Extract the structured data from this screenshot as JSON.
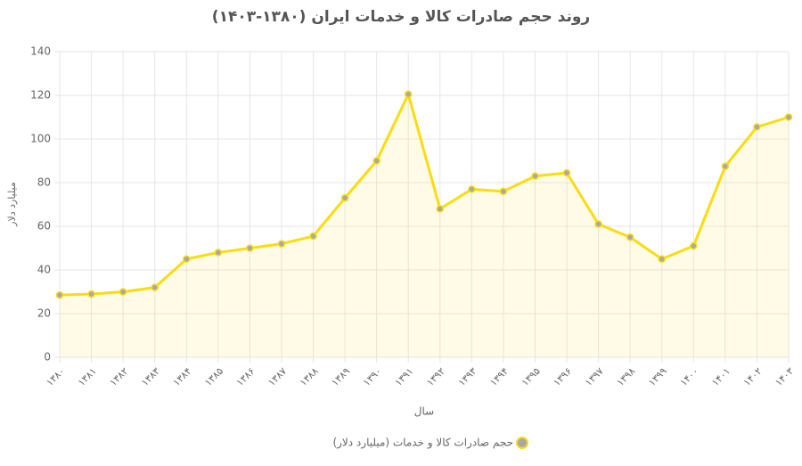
{
  "chart_data": {
    "type": "line",
    "title": "روند حجم صادرات کالا و خدمات ایران (۱۳۸۰-۱۴۰۳)",
    "x_label": "سال",
    "y_label": "میلیارد دلار",
    "categories": [
      "۱۳۸۰",
      "۱۳۸۱",
      "۱۳۸۲",
      "۱۳۸۳",
      "۱۳۸۴",
      "۱۳۸۵",
      "۱۳۸۶",
      "۱۳۸۷",
      "۱۳۸۸",
      "۱۳۸۹",
      "۱۳۹۰",
      "۱۳۹۱",
      "۱۳۹۲",
      "۱۳۹۳",
      "۱۳۹۴",
      "۱۳۹۵",
      "۱۳۹۶",
      "۱۳۹۷",
      "۱۳۹۸",
      "۱۳۹۹",
      "۱۴۰۰",
      "۱۴۰۱",
      "۱۴۰۲",
      "۱۴۰۳"
    ],
    "series": [
      {
        "name": "حجم صادرات کالا و خدمات (میلیارد دلار)",
        "color": "#fbdc0f",
        "values": [
          28.5,
          29,
          30,
          32,
          45,
          48,
          50,
          52,
          55.5,
          73,
          90,
          120.5,
          68,
          77,
          76,
          83,
          84.5,
          61,
          55,
          45,
          51,
          87.5,
          105.5,
          110
        ]
      }
    ],
    "ylim": [
      0,
      140
    ],
    "yticks": [
      0,
      20,
      40,
      60,
      80,
      100,
      120,
      140
    ],
    "grid": true,
    "legend": "bottom"
  }
}
